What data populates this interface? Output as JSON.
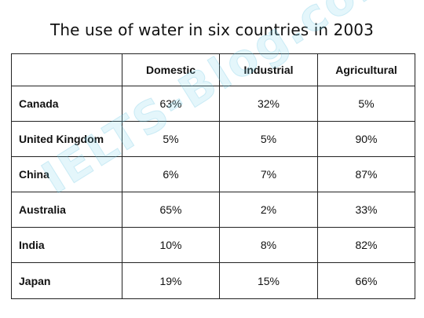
{
  "chart_data": {
    "type": "table",
    "title": "The use of water in six countries in 2003",
    "columns": [
      "",
      "Domestic",
      "Industrial",
      "Agricultural"
    ],
    "rows": [
      {
        "country": "Canada",
        "values": [
          "63%",
          "32%",
          "5%"
        ]
      },
      {
        "country": "United Kingdom",
        "values": [
          "5%",
          "5%",
          "90%"
        ]
      },
      {
        "country": "China",
        "values": [
          "6%",
          "7%",
          "87%"
        ]
      },
      {
        "country": "Australia",
        "values": [
          "65%",
          "2%",
          "33%"
        ]
      },
      {
        "country": "India",
        "values": [
          "10%",
          "8%",
          "82%"
        ]
      },
      {
        "country": "Japan",
        "values": [
          "19%",
          "15%",
          "66%"
        ]
      }
    ]
  },
  "watermark": "IELTS-Blog.com"
}
